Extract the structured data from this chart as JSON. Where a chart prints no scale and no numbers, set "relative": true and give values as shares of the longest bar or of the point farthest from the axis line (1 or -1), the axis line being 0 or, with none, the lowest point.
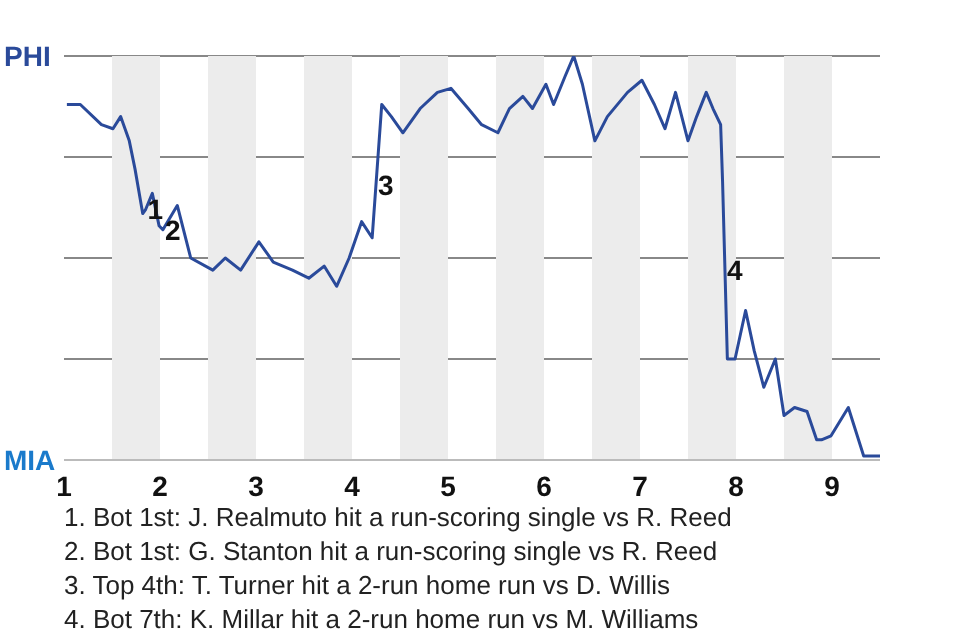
{
  "chart_data": {
    "type": "line",
    "relative": true,
    "grid": "y",
    "marker": "none",
    "legend": false,
    "xlim": [
      1,
      9.5
    ],
    "xticks": [
      1,
      2,
      3,
      4,
      5,
      6,
      7,
      8,
      9
    ],
    "bands": [
      {
        "axis": "x",
        "from": 1.5,
        "to": 2,
        "color": "#ececec"
      },
      {
        "axis": "x",
        "from": 2.5,
        "to": 3,
        "color": "#ececec"
      },
      {
        "axis": "x",
        "from": 3.5,
        "to": 4,
        "color": "#ececec"
      },
      {
        "axis": "x",
        "from": 4.5,
        "to": 5,
        "color": "#ececec"
      },
      {
        "axis": "x",
        "from": 5.5,
        "to": 6,
        "color": "#ececec"
      },
      {
        "axis": "x",
        "from": 6.5,
        "to": 7,
        "color": "#ececec"
      },
      {
        "axis": "x",
        "from": 7.5,
        "to": 8,
        "color": "#ececec"
      },
      {
        "axis": "x",
        "from": 8.5,
        "to": 9,
        "color": "#ececec"
      }
    ],
    "series": [
      {
        "color": "#2a4a9a",
        "x": [
          1.03,
          1.17,
          1.39,
          1.51,
          1.59,
          1.68,
          1.74,
          1.82,
          1.85,
          1.92,
          1.99,
          2.03,
          2.18,
          2.32,
          2.55,
          2.68,
          2.84,
          3.03,
          3.18,
          3.38,
          3.55,
          3.71,
          3.84,
          3.97,
          4.1,
          4.21,
          4.31,
          4.41,
          4.53,
          4.71,
          4.89,
          5.03,
          5.21,
          5.35,
          5.52,
          5.64,
          5.78,
          5.88,
          6.02,
          6.1,
          6.22,
          6.31,
          6.4,
          6.53,
          6.66,
          6.87,
          7.02,
          7.15,
          7.26,
          7.37,
          7.5,
          7.59,
          7.69,
          7.76,
          7.84,
          7.86,
          7.91,
          7.99,
          8.1,
          8.19,
          8.29,
          8.41,
          8.5,
          8.61,
          8.74,
          8.84,
          8.89,
          8.99,
          9.17,
          9.33,
          9.5
        ],
        "values": [
          0.88,
          0.88,
          0.83,
          0.82,
          0.85,
          0.79,
          0.72,
          0.61,
          0.62,
          0.66,
          0.58,
          0.57,
          0.63,
          0.5,
          0.47,
          0.5,
          0.47,
          0.54,
          0.49,
          0.47,
          0.45,
          0.48,
          0.43,
          0.5,
          0.59,
          0.55,
          0.88,
          0.85,
          0.81,
          0.87,
          0.91,
          0.92,
          0.87,
          0.83,
          0.81,
          0.87,
          0.9,
          0.87,
          0.93,
          0.88,
          0.95,
          1.0,
          0.93,
          0.79,
          0.85,
          0.91,
          0.94,
          0.88,
          0.82,
          0.91,
          0.79,
          0.85,
          0.91,
          0.87,
          0.83,
          0.69,
          0.25,
          0.25,
          0.37,
          0.27,
          0.18,
          0.25,
          0.11,
          0.13,
          0.12,
          0.05,
          0.05,
          0.06,
          0.13,
          0.01,
          0.01
        ]
      }
    ],
    "annotations": [
      "PHI",
      "MIA",
      {
        "text": "1",
        "x": 1.85,
        "y": 0.62
      },
      {
        "text": "2",
        "x": 2.03,
        "y": 0.57
      },
      {
        "text": "3",
        "x": 4.25,
        "y": 0.68
      },
      {
        "text": "4",
        "x": 7.885,
        "y": 0.47
      },
      "1. Bot 1st: J. Realmuto hit a run-scoring single vs R. Reed",
      "2. Bot 1st: G. Stanton hit a run-scoring single vs R. Reed",
      "3. Top 4th: T. Turner hit a 2-run home run vs D. Willis",
      "4. Bot 7th: K. Millar hit a 2-run home run vs M. Williams"
    ]
  }
}
